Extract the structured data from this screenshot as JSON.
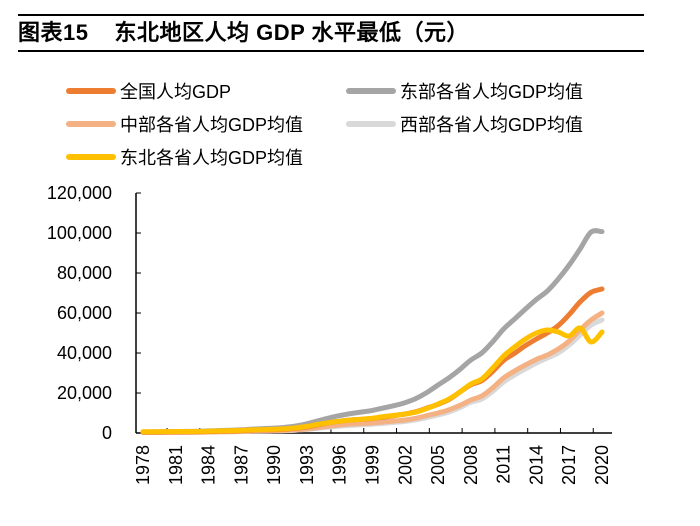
{
  "title": {
    "figure_number": "图表15",
    "text": "东北地区人均 GDP 水平最低（元）"
  },
  "chart_data": {
    "type": "line",
    "title": "东北地区人均 GDP 水平最低（元）",
    "xlabel": "",
    "ylabel": "",
    "ylim": [
      0,
      120000
    ],
    "yticks": [
      0,
      20000,
      40000,
      60000,
      80000,
      100000,
      120000
    ],
    "ytick_labels": [
      "0",
      "20,000",
      "40,000",
      "60,000",
      "80,000",
      "100,000",
      "120,000"
    ],
    "xtick_labels": [
      "1978",
      "1981",
      "1984",
      "1987",
      "1990",
      "1993",
      "1996",
      "1999",
      "2002",
      "2005",
      "2008",
      "2011",
      "2014",
      "2017",
      "2020"
    ],
    "x": [
      1978,
      1979,
      1980,
      1981,
      1982,
      1983,
      1984,
      1985,
      1986,
      1987,
      1988,
      1989,
      1990,
      1991,
      1992,
      1993,
      1994,
      1995,
      1996,
      1997,
      1998,
      1999,
      2000,
      2001,
      2002,
      2003,
      2004,
      2005,
      2006,
      2007,
      2008,
      2009,
      2010,
      2011,
      2012,
      2013,
      2014,
      2015,
      2016,
      2017,
      2018,
      2019,
      2020
    ],
    "grid": false,
    "legend_position": "top",
    "series": [
      {
        "name": "全国人均GDP",
        "color": "#ED7D31",
        "values": [
          385,
          423,
          468,
          497,
          533,
          588,
          702,
          866,
          973,
          1123,
          1378,
          1536,
          1663,
          1912,
          2334,
          3027,
          4081,
          5091,
          5898,
          6481,
          6860,
          7229,
          7942,
          8717,
          9506,
          10666,
          12487,
          14368,
          16738,
          20494,
          24100,
          26180,
          30808,
          36302,
          39874,
          43684,
          47005,
          50028,
          53680,
          59201,
          65534,
          70328,
          72000
        ]
      },
      {
        "name": "东部各省人均GDP均值",
        "color": "#A5A5A5",
        "values": [
          550,
          600,
          680,
          740,
          800,
          880,
          1030,
          1250,
          1400,
          1600,
          1950,
          2200,
          2450,
          2850,
          3500,
          4600,
          6100,
          7500,
          8700,
          9700,
          10500,
          11300,
          12500,
          13700,
          15200,
          17300,
          20300,
          24000,
          27600,
          31800,
          36500,
          40000,
          45600,
          52000,
          57000,
          62000,
          66800,
          71000,
          77000,
          84000,
          92000,
          100500,
          100700
        ]
      },
      {
        "name": "中部各省人均GDP均值",
        "color": "#F4B183",
        "values": [
          300,
          330,
          360,
          380,
          410,
          450,
          530,
          650,
          720,
          820,
          1000,
          1110,
          1200,
          1350,
          1600,
          2050,
          2700,
          3400,
          4000,
          4500,
          4800,
          5000,
          5500,
          6000,
          6500,
          7400,
          8700,
          10000,
          11600,
          13800,
          16500,
          18500,
          22600,
          27500,
          31000,
          34000,
          36800,
          39000,
          42000,
          46000,
          51500,
          56500,
          60000
        ]
      },
      {
        "name": "西部各省人均GDP均值",
        "color": "#D9D9D9",
        "values": [
          280,
          300,
          330,
          350,
          380,
          410,
          480,
          580,
          650,
          730,
          880,
          980,
          1080,
          1200,
          1420,
          1800,
          2350,
          2900,
          3400,
          3800,
          4100,
          4400,
          4800,
          5300,
          5800,
          6600,
          7700,
          9000,
          10500,
          12700,
          15400,
          17000,
          20800,
          25500,
          29000,
          32000,
          35000,
          37500,
          40000,
          44000,
          49000,
          54000,
          56500
        ]
      },
      {
        "name": "东北各省人均GDP均值",
        "color": "#FFC000",
        "values": [
          600,
          640,
          690,
          710,
          740,
          790,
          900,
          1050,
          1150,
          1300,
          1550,
          1700,
          1850,
          2100,
          2550,
          3300,
          4300,
          5200,
          5900,
          6500,
          6900,
          7400,
          8200,
          8800,
          9500,
          10500,
          12300,
          14500,
          17000,
          20500,
          24500,
          27000,
          32500,
          38500,
          43000,
          47000,
          50000,
          51500,
          50500,
          48500,
          52500,
          45500,
          50500
        ]
      }
    ]
  }
}
